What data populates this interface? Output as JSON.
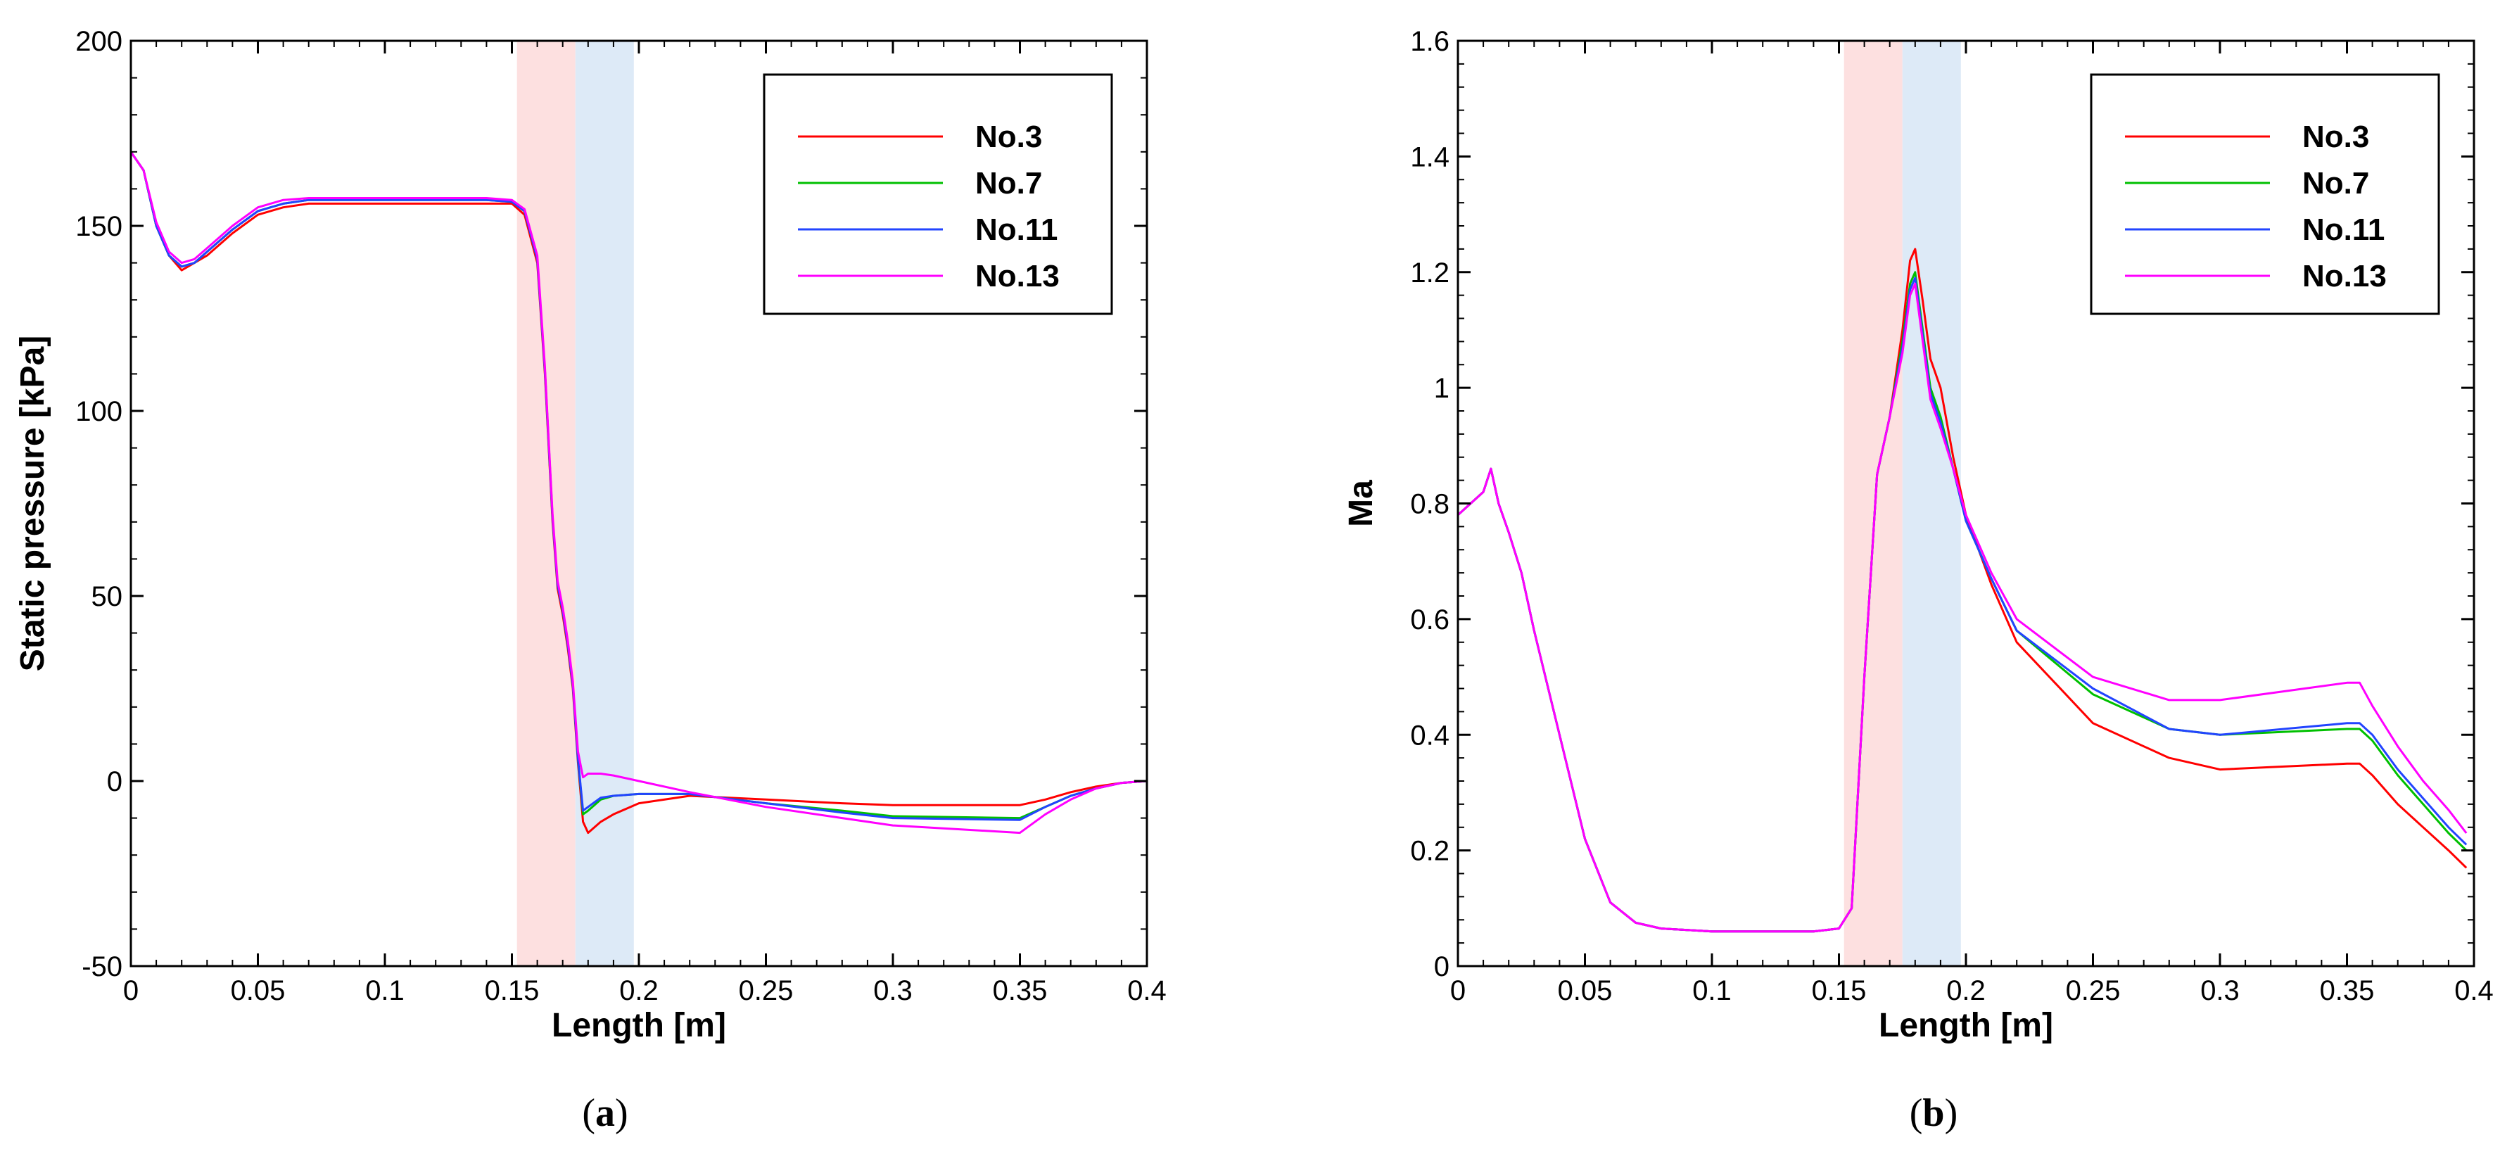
{
  "chart_data": [
    {
      "type": "line",
      "caption": "a",
      "xlabel": "Length [m]",
      "ylabel": "Static pressure [kPa]",
      "xlim": [
        0,
        0.4
      ],
      "ylim": [
        -50,
        200
      ],
      "xticks": [
        0,
        0.05,
        0.1,
        0.15,
        0.2,
        0.25,
        0.3,
        0.35,
        0.4
      ],
      "xtick_labels": [
        "0",
        "0.05",
        "0.1",
        "0.15",
        "0.2",
        "0.25",
        "0.3",
        "0.35",
        "0.4"
      ],
      "yticks": [
        -50,
        0,
        50,
        100,
        150,
        200
      ],
      "ytick_labels": [
        "-50",
        "0",
        "50",
        "100",
        "150",
        "200"
      ],
      "bands": [
        {
          "x0": 0.152,
          "x1": 0.175,
          "color": "#fde0e0"
        },
        {
          "x0": 0.175,
          "x1": 0.198,
          "color": "#ddeaf7"
        }
      ],
      "legend_position": "top-right",
      "series": [
        {
          "name": "No.3",
          "color": "#ff0000",
          "x": [
            0,
            0.005,
            0.01,
            0.015,
            0.02,
            0.025,
            0.03,
            0.04,
            0.05,
            0.06,
            0.07,
            0.08,
            0.1,
            0.12,
            0.14,
            0.15,
            0.155,
            0.16,
            0.163,
            0.166,
            0.168,
            0.17,
            0.172,
            0.174,
            0.176,
            0.178,
            0.18,
            0.185,
            0.19,
            0.2,
            0.22,
            0.25,
            0.28,
            0.3,
            0.35,
            0.36,
            0.37,
            0.38,
            0.39,
            0.4
          ],
          "values": [
            170,
            165,
            150,
            142,
            138,
            140,
            142,
            148,
            153,
            155,
            156,
            156,
            156,
            156,
            156,
            156,
            153,
            140,
            110,
            70,
            52,
            45,
            36,
            25,
            5,
            -11,
            -14,
            -11,
            -9,
            -6,
            -4,
            -5,
            -6,
            -6.5,
            -6.5,
            -5,
            -3,
            -1.5,
            -0.5,
            0
          ]
        },
        {
          "name": "No.7",
          "color": "#00c000",
          "x": [
            0,
            0.005,
            0.01,
            0.015,
            0.02,
            0.025,
            0.03,
            0.04,
            0.05,
            0.06,
            0.07,
            0.08,
            0.1,
            0.12,
            0.14,
            0.15,
            0.155,
            0.16,
            0.163,
            0.166,
            0.168,
            0.17,
            0.172,
            0.174,
            0.176,
            0.178,
            0.18,
            0.185,
            0.19,
            0.2,
            0.22,
            0.25,
            0.28,
            0.3,
            0.35,
            0.36,
            0.37,
            0.38,
            0.39,
            0.4
          ],
          "values": [
            170,
            165,
            150,
            142,
            139,
            140,
            143,
            149,
            154,
            156,
            157,
            157,
            157,
            157,
            157,
            156.5,
            154,
            141,
            111,
            71,
            53,
            46,
            37,
            26,
            6,
            -9,
            -8,
            -5,
            -4,
            -3.5,
            -3.5,
            -6,
            -8,
            -9.5,
            -10,
            -7,
            -4,
            -2,
            -0.5,
            0
          ]
        },
        {
          "name": "No.11",
          "color": "#2244ff",
          "x": [
            0,
            0.005,
            0.01,
            0.015,
            0.02,
            0.025,
            0.03,
            0.04,
            0.05,
            0.06,
            0.07,
            0.08,
            0.1,
            0.12,
            0.14,
            0.15,
            0.155,
            0.16,
            0.163,
            0.166,
            0.168,
            0.17,
            0.172,
            0.174,
            0.176,
            0.178,
            0.18,
            0.185,
            0.19,
            0.2,
            0.22,
            0.25,
            0.28,
            0.3,
            0.35,
            0.36,
            0.37,
            0.38,
            0.39,
            0.4
          ],
          "values": [
            170,
            165,
            150,
            142,
            139,
            140,
            143,
            149,
            154,
            156,
            157,
            157,
            157,
            157,
            157,
            156.5,
            154,
            141,
            111,
            71,
            53,
            46,
            37,
            26,
            6,
            -8,
            -7,
            -4.5,
            -4,
            -3.5,
            -3.5,
            -6,
            -8.5,
            -10,
            -10.5,
            -7,
            -4,
            -2,
            -0.5,
            0
          ]
        },
        {
          "name": "No.13",
          "color": "#ff00ff",
          "x": [
            0,
            0.005,
            0.01,
            0.015,
            0.02,
            0.025,
            0.03,
            0.04,
            0.05,
            0.06,
            0.07,
            0.08,
            0.1,
            0.12,
            0.14,
            0.15,
            0.155,
            0.16,
            0.163,
            0.166,
            0.168,
            0.17,
            0.172,
            0.174,
            0.176,
            0.178,
            0.18,
            0.185,
            0.19,
            0.2,
            0.22,
            0.25,
            0.28,
            0.3,
            0.35,
            0.36,
            0.37,
            0.38,
            0.39,
            0.4
          ],
          "values": [
            170,
            165,
            151,
            143,
            140,
            141,
            144,
            150,
            155,
            157,
            157.5,
            157.5,
            157.5,
            157.5,
            157.5,
            157,
            154.5,
            142,
            112,
            72,
            54,
            47,
            38,
            27,
            8,
            1,
            2,
            2,
            1.5,
            0,
            -3,
            -7,
            -10,
            -12,
            -14,
            -9,
            -5,
            -2,
            -0.5,
            0
          ]
        }
      ]
    },
    {
      "type": "line",
      "caption": "b",
      "xlabel": "Length [m]",
      "ylabel": "Ma",
      "xlim": [
        0,
        0.4
      ],
      "ylim": [
        0,
        1.6
      ],
      "xticks": [
        0,
        0.05,
        0.1,
        0.15,
        0.2,
        0.25,
        0.3,
        0.35,
        0.4
      ],
      "xtick_labels": [
        "0",
        "0.05",
        "0.1",
        "0.15",
        "0.2",
        "0.25",
        "0.3",
        "0.35",
        "0.4"
      ],
      "yticks": [
        0,
        0.2,
        0.4,
        0.6,
        0.8,
        1.0,
        1.2,
        1.4,
        1.6
      ],
      "ytick_labels": [
        "0",
        "0.2",
        "0.4",
        "0.6",
        "0.8",
        "1",
        "1.2",
        "1.4",
        "1.6"
      ],
      "bands": [
        {
          "x0": 0.152,
          "x1": 0.175,
          "color": "#fde0e0"
        },
        {
          "x0": 0.175,
          "x1": 0.198,
          "color": "#ddeaf7"
        }
      ],
      "legend_position": "top-right",
      "series": [
        {
          "name": "No.3",
          "color": "#ff0000",
          "x": [
            0,
            0.005,
            0.01,
            0.013,
            0.016,
            0.02,
            0.025,
            0.03,
            0.04,
            0.05,
            0.06,
            0.07,
            0.08,
            0.1,
            0.12,
            0.14,
            0.15,
            0.155,
            0.16,
            0.165,
            0.17,
            0.175,
            0.178,
            0.18,
            0.183,
            0.186,
            0.19,
            0.195,
            0.2,
            0.21,
            0.22,
            0.25,
            0.28,
            0.3,
            0.35,
            0.355,
            0.36,
            0.37,
            0.38,
            0.39,
            0.397
          ],
          "values": [
            0.78,
            0.8,
            0.82,
            0.86,
            0.8,
            0.75,
            0.68,
            0.58,
            0.4,
            0.22,
            0.11,
            0.075,
            0.065,
            0.06,
            0.06,
            0.06,
            0.065,
            0.1,
            0.5,
            0.85,
            0.95,
            1.1,
            1.22,
            1.24,
            1.15,
            1.05,
            1.0,
            0.88,
            0.78,
            0.66,
            0.56,
            0.42,
            0.36,
            0.34,
            0.35,
            0.35,
            0.33,
            0.28,
            0.24,
            0.2,
            0.17
          ]
        },
        {
          "name": "No.7",
          "color": "#00c000",
          "x": [
            0,
            0.005,
            0.01,
            0.013,
            0.016,
            0.02,
            0.025,
            0.03,
            0.04,
            0.05,
            0.06,
            0.07,
            0.08,
            0.1,
            0.12,
            0.14,
            0.15,
            0.155,
            0.16,
            0.165,
            0.17,
            0.175,
            0.178,
            0.18,
            0.183,
            0.186,
            0.19,
            0.195,
            0.2,
            0.21,
            0.22,
            0.25,
            0.28,
            0.3,
            0.35,
            0.355,
            0.36,
            0.37,
            0.38,
            0.39,
            0.397
          ],
          "values": [
            0.78,
            0.8,
            0.82,
            0.86,
            0.8,
            0.75,
            0.68,
            0.58,
            0.4,
            0.22,
            0.11,
            0.075,
            0.065,
            0.06,
            0.06,
            0.06,
            0.065,
            0.1,
            0.5,
            0.85,
            0.95,
            1.08,
            1.18,
            1.2,
            1.1,
            1.0,
            0.95,
            0.86,
            0.77,
            0.67,
            0.58,
            0.47,
            0.41,
            0.4,
            0.41,
            0.41,
            0.39,
            0.33,
            0.28,
            0.23,
            0.2
          ]
        },
        {
          "name": "No.11",
          "color": "#2244ff",
          "x": [
            0,
            0.005,
            0.01,
            0.013,
            0.016,
            0.02,
            0.025,
            0.03,
            0.04,
            0.05,
            0.06,
            0.07,
            0.08,
            0.1,
            0.12,
            0.14,
            0.15,
            0.155,
            0.16,
            0.165,
            0.17,
            0.175,
            0.178,
            0.18,
            0.183,
            0.186,
            0.19,
            0.195,
            0.2,
            0.21,
            0.22,
            0.25,
            0.28,
            0.3,
            0.35,
            0.355,
            0.36,
            0.37,
            0.38,
            0.39,
            0.397
          ],
          "values": [
            0.78,
            0.8,
            0.82,
            0.86,
            0.8,
            0.75,
            0.68,
            0.58,
            0.4,
            0.22,
            0.11,
            0.075,
            0.065,
            0.06,
            0.06,
            0.06,
            0.065,
            0.1,
            0.5,
            0.85,
            0.95,
            1.07,
            1.17,
            1.19,
            1.09,
            0.99,
            0.94,
            0.86,
            0.77,
            0.67,
            0.58,
            0.48,
            0.41,
            0.4,
            0.42,
            0.42,
            0.4,
            0.34,
            0.29,
            0.24,
            0.21
          ]
        },
        {
          "name": "No.13",
          "color": "#ff00ff",
          "x": [
            0,
            0.005,
            0.01,
            0.013,
            0.016,
            0.02,
            0.025,
            0.03,
            0.04,
            0.05,
            0.06,
            0.07,
            0.08,
            0.1,
            0.12,
            0.14,
            0.15,
            0.155,
            0.16,
            0.165,
            0.17,
            0.175,
            0.178,
            0.18,
            0.183,
            0.186,
            0.19,
            0.195,
            0.2,
            0.21,
            0.22,
            0.25,
            0.28,
            0.3,
            0.35,
            0.355,
            0.36,
            0.37,
            0.38,
            0.39,
            0.397
          ],
          "values": [
            0.78,
            0.8,
            0.82,
            0.86,
            0.8,
            0.75,
            0.68,
            0.58,
            0.4,
            0.22,
            0.11,
            0.075,
            0.065,
            0.06,
            0.06,
            0.06,
            0.065,
            0.1,
            0.5,
            0.85,
            0.95,
            1.06,
            1.16,
            1.18,
            1.08,
            0.98,
            0.93,
            0.86,
            0.78,
            0.68,
            0.6,
            0.5,
            0.46,
            0.46,
            0.49,
            0.49,
            0.45,
            0.38,
            0.32,
            0.27,
            0.23
          ]
        }
      ]
    }
  ]
}
